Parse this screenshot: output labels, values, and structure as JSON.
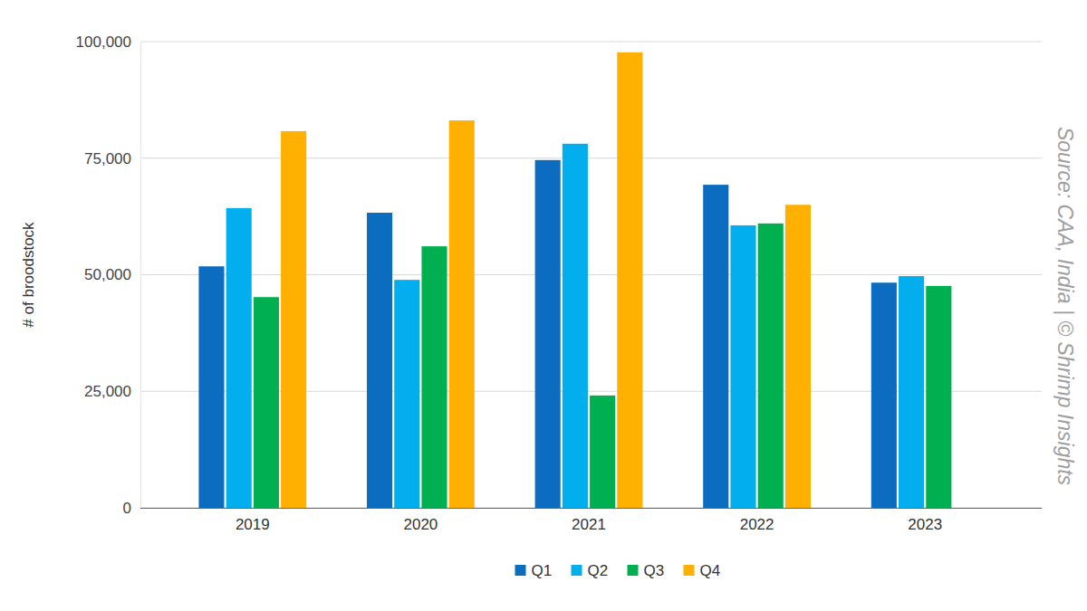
{
  "chart_data": {
    "type": "bar",
    "y_label": "# of broodstock",
    "annotation": "Source: CAA, India | © Shrimp Insights",
    "categories": [
      "2019",
      "2020",
      "2021",
      "2022",
      "2023"
    ],
    "series": [
      {
        "name": "Q1",
        "color": "#0b6cc0",
        "values": [
          51800,
          63300,
          74600,
          69300,
          48300
        ]
      },
      {
        "name": "Q2",
        "color": "#03aeee",
        "values": [
          64300,
          48900,
          78100,
          60600,
          49700
        ]
      },
      {
        "name": "Q3",
        "color": "#00b050",
        "values": [
          45200,
          56100,
          24100,
          61000,
          47600
        ]
      },
      {
        "name": "Q4",
        "color": "#ffb000",
        "values": [
          80800,
          83100,
          97700,
          65000,
          null
        ]
      }
    ],
    "ylim": [
      0,
      100000
    ],
    "yticks": [
      0,
      {
        "value": 25000,
        "label": "25,000"
      },
      {
        "value": 50000,
        "label": "50,000"
      },
      {
        "value": 75000,
        "label": "75,000"
      },
      {
        "value": 100000,
        "label": "100,000"
      }
    ],
    "grid": true,
    "legend": "bottom"
  }
}
